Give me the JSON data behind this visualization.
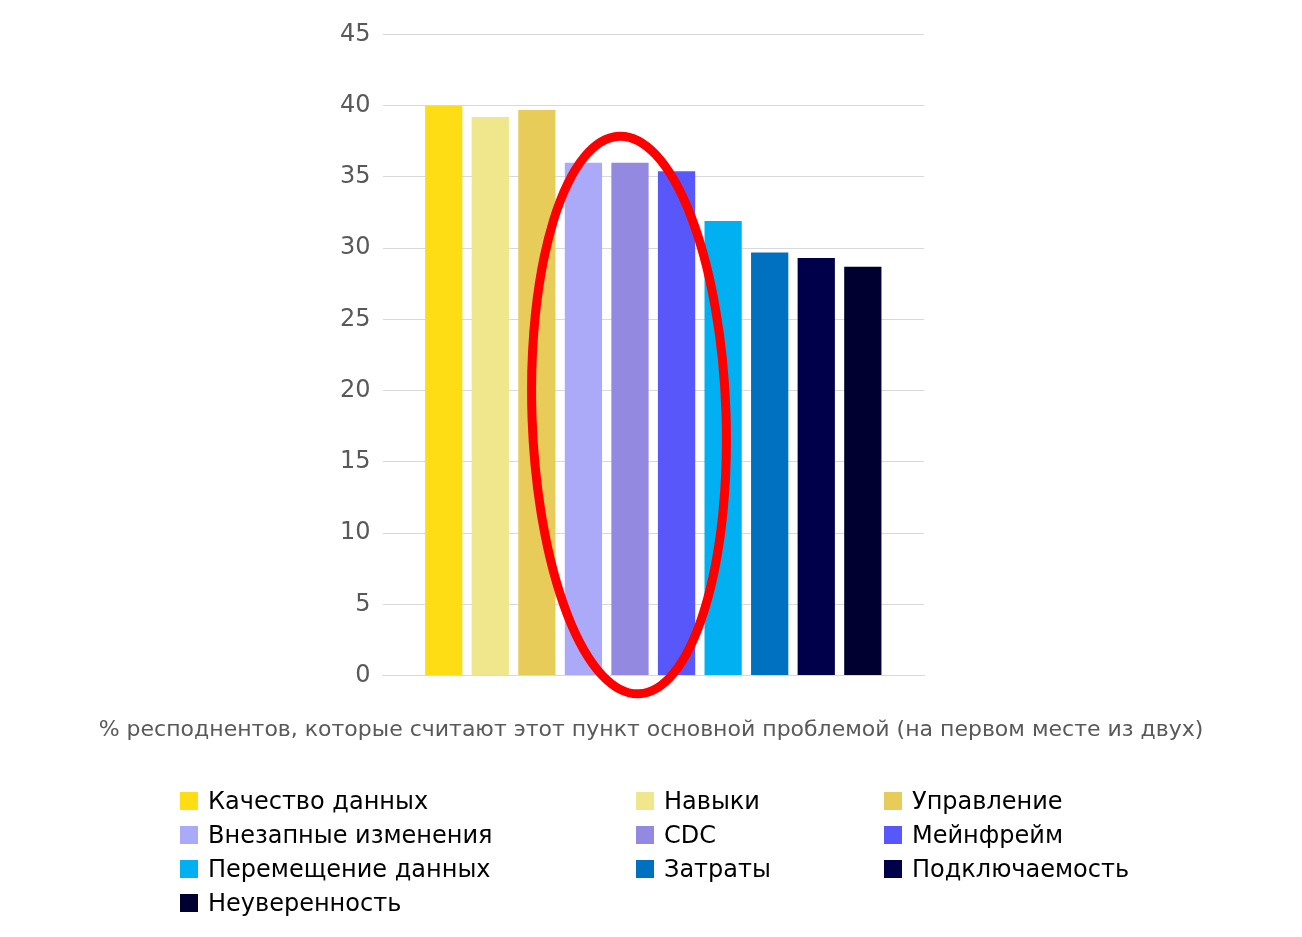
{
  "chart_data": {
    "type": "bar",
    "xlabel": "% респоднентов, которые считают этот пункт основной проблемой (на первом месте из двух)",
    "categories": [
      null
    ],
    "series": [
      {
        "name": "Качество данных",
        "color": "#ffdd15",
        "values": [
          40
        ]
      },
      {
        "name": "Навыки",
        "color": "#f0e68c",
        "values": [
          39.2
        ]
      },
      {
        "name": "Управление",
        "color": "#e8cc5a",
        "values": [
          39.7
        ]
      },
      {
        "name": "Внезапные изменения",
        "color": "#aaaaf8",
        "values": [
          36
        ]
      },
      {
        "name": "CDC",
        "color": "#9489e0",
        "values": [
          36
        ]
      },
      {
        "name": "Мейнфрейм",
        "color": "#5858fa",
        "values": [
          35.4
        ]
      },
      {
        "name": "Перемещение данных",
        "color": "#00b0f0",
        "values": [
          31.9
        ]
      },
      {
        "name": "Затраты",
        "color": "#0070c0",
        "values": [
          29.7
        ]
      },
      {
        "name": "Подключаемость",
        "color": "#00004a",
        "values": [
          29.3
        ]
      },
      {
        "name": "Неуверенность",
        "color": "#000030",
        "values": [
          28.7
        ]
      }
    ],
    "ylim": [
      0,
      45
    ],
    "yticks": [
      0,
      5,
      10,
      15,
      20,
      25,
      30,
      35,
      40,
      45
    ],
    "grid": "y",
    "legend": "bottom"
  }
}
